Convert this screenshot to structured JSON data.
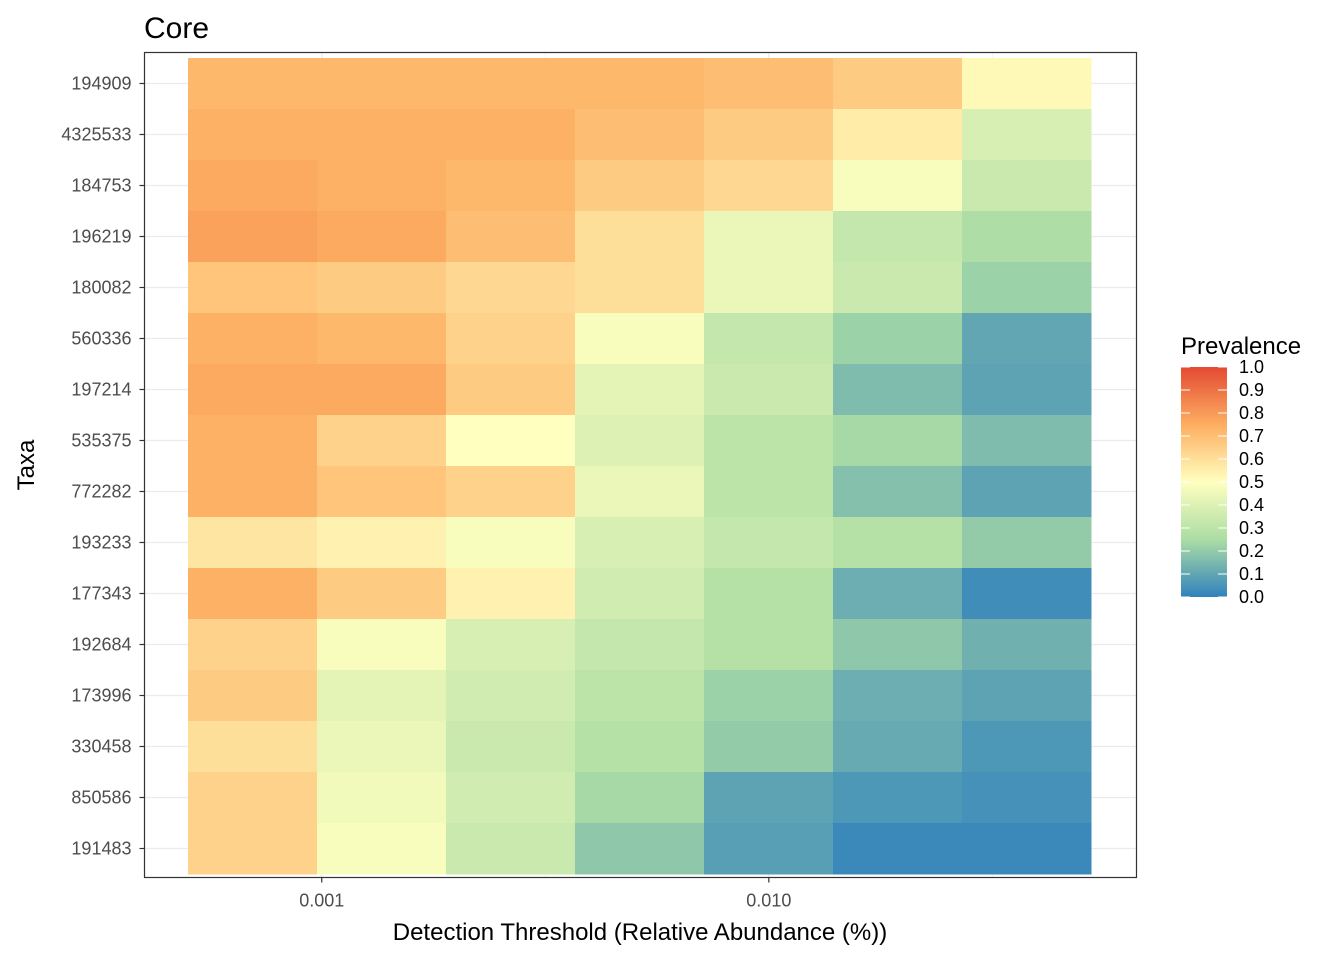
{
  "chart_data": {
    "type": "heatmap",
    "title": "Core",
    "xlabel": "Detection Threshold (Relative Abundance (%))",
    "ylabel": "Taxa",
    "x_scale": "log10",
    "x_ticks": [
      {
        "value": 0.001,
        "label": "0.001"
      },
      {
        "value": 0.01,
        "label": "0.010"
      }
    ],
    "x_thresholds": [
      0.0007,
      0.00136,
      0.00264,
      0.00513,
      0.00997,
      0.0194,
      0.0377
    ],
    "taxa": [
      "194909",
      "4325533",
      "184753",
      "196219",
      "180082",
      "560336",
      "197214",
      "535375",
      "772282",
      "193233",
      "177343",
      "192684",
      "173996",
      "330458",
      "850586",
      "191483"
    ],
    "prevalence": [
      [
        0.72,
        0.72,
        0.72,
        0.72,
        0.7,
        0.66,
        0.52
      ],
      [
        0.74,
        0.74,
        0.74,
        0.7,
        0.66,
        0.56,
        0.38
      ],
      [
        0.76,
        0.74,
        0.72,
        0.66,
        0.62,
        0.48,
        0.34
      ],
      [
        0.78,
        0.76,
        0.7,
        0.6,
        0.44,
        0.32,
        0.26
      ],
      [
        0.68,
        0.66,
        0.62,
        0.6,
        0.44,
        0.34,
        0.22
      ],
      [
        0.74,
        0.72,
        0.64,
        0.48,
        0.32,
        0.22,
        0.1
      ],
      [
        0.76,
        0.76,
        0.66,
        0.42,
        0.34,
        0.16,
        0.09
      ],
      [
        0.74,
        0.64,
        0.5,
        0.4,
        0.3,
        0.24,
        0.16
      ],
      [
        0.74,
        0.68,
        0.64,
        0.44,
        0.3,
        0.17,
        0.09
      ],
      [
        0.58,
        0.54,
        0.48,
        0.38,
        0.32,
        0.28,
        0.2
      ],
      [
        0.74,
        0.66,
        0.54,
        0.36,
        0.28,
        0.12,
        0.03
      ],
      [
        0.64,
        0.48,
        0.38,
        0.32,
        0.28,
        0.19,
        0.13
      ],
      [
        0.66,
        0.42,
        0.36,
        0.3,
        0.22,
        0.12,
        0.09
      ],
      [
        0.6,
        0.44,
        0.34,
        0.28,
        0.2,
        0.11,
        0.06
      ],
      [
        0.64,
        0.46,
        0.36,
        0.24,
        0.09,
        0.06,
        0.04
      ],
      [
        0.64,
        0.48,
        0.34,
        0.19,
        0.08,
        0.02,
        0.02
      ]
    ],
    "legend": {
      "title": "Prevalence",
      "min": 0.0,
      "max": 1.0,
      "labels": [
        "1.0",
        "0.9",
        "0.8",
        "0.7",
        "0.6",
        "0.5",
        "0.4",
        "0.3",
        "0.2",
        "0.1",
        "0.0"
      ],
      "placement": "right"
    },
    "palette": [
      "#3182bd",
      "#abdda4",
      "#ffffbf",
      "#fdae61",
      "#e34a33"
    ],
    "grid": true
  }
}
